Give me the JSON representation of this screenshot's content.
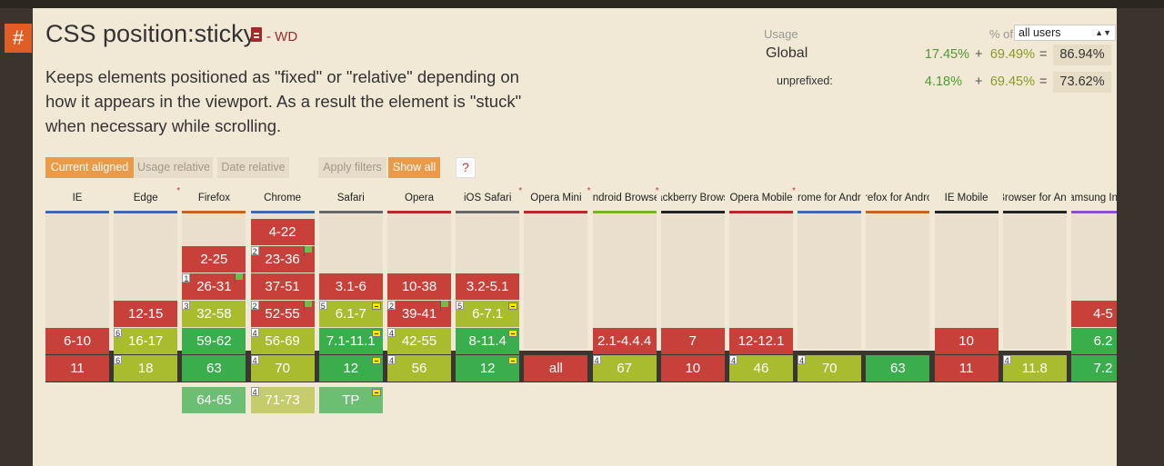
{
  "feature": {
    "hash": "#",
    "title": "CSS position:sticky",
    "status": "- WD",
    "description": "Keeps elements positioned as \"fixed\" or \"relative\" depending on how it appears in the viewport. As a result the element is \"stuck\" when necessary while scrolling."
  },
  "usage": {
    "label": "Usage",
    "pct_of": "% of",
    "users_select": "all users",
    "global": {
      "label": "Global",
      "supported": "17.45%",
      "plus": "+",
      "partial": "69.49%",
      "equals": "=",
      "total": "86.94%"
    },
    "unprefixed": {
      "label": "unprefixed:",
      "supported": "4.18%",
      "plus": "+",
      "partial": "69.45%",
      "equals": "=",
      "total": "73.62%"
    }
  },
  "filters": {
    "current_aligned": "Current aligned",
    "usage_relative": "Usage relative",
    "date_relative": "Date relative",
    "apply_filters": "Apply filters",
    "show_all": "Show all",
    "help": "?"
  },
  "colors": {
    "supported": "#3aad4d",
    "partial": "#a9bc2e",
    "unsupported": "#c8403a",
    "accent": "#eb9a45",
    "hash": "#e05e26"
  },
  "browsers": [
    {
      "name": "IE",
      "bar": "#3c6aa8",
      "cells": [
        {
          "row": -1,
          "v": "6-10",
          "s": "r"
        },
        {
          "row": 0,
          "v": "11",
          "s": "r"
        }
      ]
    },
    {
      "name": "Edge",
      "star": true,
      "bar": "#3c6aa8",
      "cells": [
        {
          "row": -2,
          "v": "12-15",
          "s": "r"
        },
        {
          "row": -1,
          "v": "16-17",
          "s": "y",
          "note": "6"
        },
        {
          "row": 0,
          "v": "18",
          "s": "y",
          "note": "6"
        }
      ]
    },
    {
      "name": "Firefox",
      "bar": "#c3641f",
      "cells": [
        {
          "row": -4,
          "v": "2-25",
          "s": "r"
        },
        {
          "row": -3,
          "v": "26-31",
          "s": "r",
          "note": "1",
          "flag": true
        },
        {
          "row": -2,
          "v": "32-58",
          "s": "y",
          "note": "3"
        },
        {
          "row": -1,
          "v": "59-62",
          "s": "g"
        },
        {
          "row": 0,
          "v": "63",
          "s": "g"
        },
        {
          "row": 1,
          "v": "64-65",
          "s": "fg"
        }
      ]
    },
    {
      "name": "Chrome",
      "bar": "#3c6aa8",
      "cells": [
        {
          "row": -5,
          "v": "4-22",
          "s": "r"
        },
        {
          "row": -4,
          "v": "23-36",
          "s": "r",
          "note": "2",
          "flag": true
        },
        {
          "row": -3,
          "v": "37-51",
          "s": "r"
        },
        {
          "row": -2,
          "v": "52-55",
          "s": "r",
          "note": "2",
          "flag": true
        },
        {
          "row": -1,
          "v": "56-69",
          "s": "y",
          "note": "4"
        },
        {
          "row": 0,
          "v": "70",
          "s": "y",
          "note": "4"
        },
        {
          "row": 1,
          "v": "71-73",
          "s": "fy",
          "note": "4"
        }
      ]
    },
    {
      "name": "Safari",
      "bar": "#666666",
      "cells": [
        {
          "row": -3,
          "v": "3.1-6",
          "s": "r"
        },
        {
          "row": -2,
          "v": "6.1-7",
          "s": "y",
          "note": "5",
          "mini": true
        },
        {
          "row": -1,
          "v": "7.1-11.1",
          "s": "g",
          "mini": true
        },
        {
          "row": 0,
          "v": "12",
          "s": "g",
          "mini": true
        },
        {
          "row": 1,
          "v": "TP",
          "s": "fg",
          "mini": true
        }
      ]
    },
    {
      "name": "Opera",
      "bar": "#b22a2a",
      "cells": [
        {
          "row": -3,
          "v": "10-38",
          "s": "r"
        },
        {
          "row": -2,
          "v": "39-41",
          "s": "r",
          "note": "2",
          "flag": true
        },
        {
          "row": -1,
          "v": "42-55",
          "s": "y",
          "note": "4"
        },
        {
          "row": 0,
          "v": "56",
          "s": "y",
          "note": "4"
        }
      ]
    },
    {
      "name": "iOS Safari",
      "star": true,
      "bar": "#666666",
      "cells": [
        {
          "row": -3,
          "v": "3.2-5.1",
          "s": "r"
        },
        {
          "row": -2,
          "v": "6-7.1",
          "s": "y",
          "note": "5",
          "mini": true
        },
        {
          "row": -1,
          "v": "8-11.4",
          "s": "g",
          "mini": true
        },
        {
          "row": 0,
          "v": "12",
          "s": "g",
          "mini": true
        }
      ]
    },
    {
      "name": "Opera Mini",
      "star": true,
      "bar": "#b22a2a",
      "cells": [
        {
          "row": 0,
          "v": "all",
          "s": "r"
        }
      ]
    },
    {
      "name": "Android Browser",
      "star": true,
      "bar": "#7ab02c",
      "cells": [
        {
          "row": -1,
          "v": "2.1-4.4.4",
          "s": "r"
        },
        {
          "row": 0,
          "v": "67",
          "s": "y",
          "note": "4"
        }
      ]
    },
    {
      "name": "Blackberry Browser",
      "bar": "#222222",
      "cells": [
        {
          "row": -1,
          "v": "7",
          "s": "r"
        },
        {
          "row": 0,
          "v": "10",
          "s": "r"
        }
      ]
    },
    {
      "name": "Opera Mobile",
      "star": true,
      "bar": "#b22a2a",
      "cells": [
        {
          "row": -1,
          "v": "12-12.1",
          "s": "r"
        },
        {
          "row": 0,
          "v": "46",
          "s": "y",
          "note": "4"
        }
      ]
    },
    {
      "name": "Chrome for Android",
      "bar": "#3c6aa8",
      "cells": [
        {
          "row": 0,
          "v": "70",
          "s": "y",
          "note": "4"
        }
      ]
    },
    {
      "name": "Firefox for Android",
      "bar": "#c3641f",
      "cells": [
        {
          "row": 0,
          "v": "63",
          "s": "g"
        }
      ]
    },
    {
      "name": "IE Mobile",
      "bar": "#222222",
      "cells": [
        {
          "row": -1,
          "v": "10",
          "s": "r"
        },
        {
          "row": 0,
          "v": "11",
          "s": "r"
        }
      ]
    },
    {
      "name": "UC Browser for Android",
      "bar": "#222222",
      "cells": [
        {
          "row": 0,
          "v": "11.8",
          "s": "y",
          "note": "4"
        }
      ]
    },
    {
      "name": "Samsung Internet",
      "bar": "#8a4fc9",
      "cells": [
        {
          "row": -2,
          "v": "4-5",
          "s": "r"
        },
        {
          "row": -1,
          "v": "6.2",
          "s": "g"
        },
        {
          "row": 0,
          "v": "7.2",
          "s": "g"
        }
      ]
    }
  ]
}
